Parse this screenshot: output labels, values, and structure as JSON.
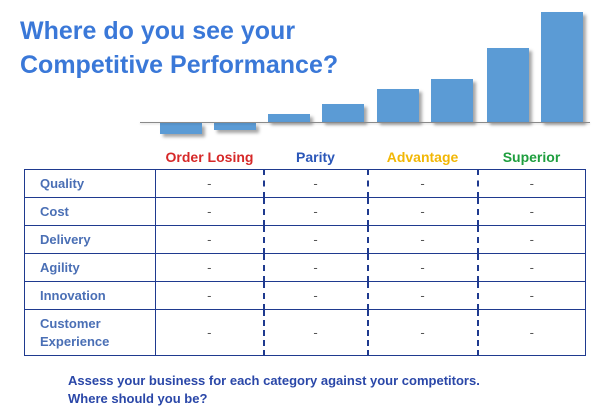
{
  "title": {
    "line1": "Where do you see your",
    "line2": "Competitive Performance?"
  },
  "colors": {
    "title": "#3a78d8",
    "bar": "#5b9bd5",
    "grid": "#1f3a8f",
    "order_losing": "#d62828",
    "parity": "#2a56b8",
    "advantage": "#f2b705",
    "superior": "#1e9e3e"
  },
  "columns": [
    "Order Losing",
    "Parity",
    "Advantage",
    "Superior"
  ],
  "rows": [
    {
      "label": "Quality",
      "values": [
        "-",
        "-",
        "-",
        "-"
      ]
    },
    {
      "label": "Cost",
      "values": [
        "-",
        "-",
        "-",
        "-"
      ]
    },
    {
      "label": "Delivery",
      "values": [
        "-",
        "-",
        "-",
        "-"
      ]
    },
    {
      "label": "Agility",
      "values": [
        "-",
        "-",
        "-",
        "-"
      ]
    },
    {
      "label": "Innovation",
      "values": [
        "-",
        "-",
        "-",
        "-"
      ]
    },
    {
      "label": "Customer Experience",
      "values": [
        "-",
        "-",
        "-",
        "-"
      ]
    }
  ],
  "footer": {
    "line1": "Assess your business for each category against your competitors.",
    "line2": "Where should you be?"
  }
}
